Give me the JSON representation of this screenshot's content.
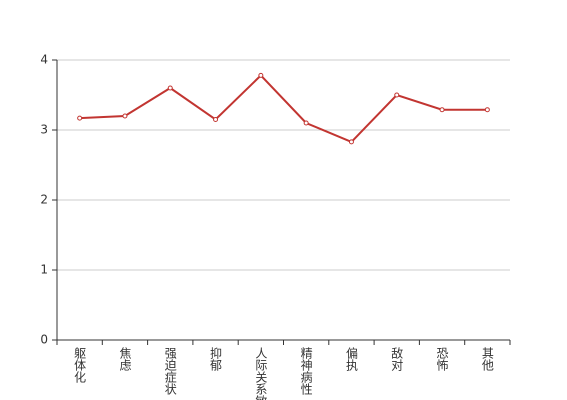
{
  "chart_data": {
    "type": "line",
    "categories": [
      "躯体化",
      "焦虑",
      "强迫症状",
      "抑郁",
      "人际关系敏感",
      "精神病性",
      "偏执",
      "敌对",
      "恐怖",
      "其他"
    ],
    "series": [
      {
        "color": "#c23531",
        "values": [
          3.17,
          3.2,
          3.6,
          3.15,
          3.78,
          3.1,
          2.83,
          3.5,
          3.29,
          3.29
        ]
      }
    ],
    "ylim": [
      0,
      4
    ],
    "yticks": [
      0,
      1,
      2,
      3,
      4
    ],
    "grid": true
  }
}
